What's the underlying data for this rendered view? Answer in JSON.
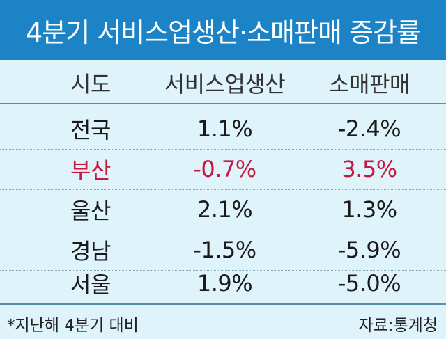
{
  "title": "4분기 서비스업생산·소매판매 증감률",
  "colors": {
    "title_bg": "#1c84c6",
    "table_bg": "#dff3fa",
    "highlight": "#c8183f"
  },
  "chart_data": {
    "type": "table",
    "title": "4분기 서비스업생산·소매판매 증감률",
    "columns": [
      "시도",
      "서비스업생산",
      "소매판매"
    ],
    "rows": [
      {
        "region": "전국",
        "service": "1.1%",
        "retail": "-2.4%",
        "highlight": false
      },
      {
        "region": "부산",
        "service": "-0.7%",
        "retail": "3.5%",
        "highlight": true
      },
      {
        "region": "울산",
        "service": "2.1%",
        "retail": "1.3%",
        "highlight": false
      },
      {
        "region": "경남",
        "service": "-1.5%",
        "retail": "-5.9%",
        "highlight": false
      },
      {
        "region": "서울",
        "service": "1.9%",
        "retail": "-5.0%",
        "highlight": false
      }
    ]
  },
  "footer": {
    "note": "*지난해 4분기 대비",
    "source": "자료:통계청"
  }
}
